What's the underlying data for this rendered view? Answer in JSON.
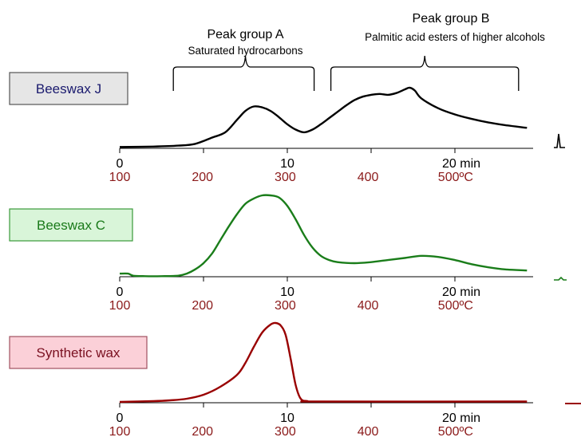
{
  "chart_data": {
    "type": "line",
    "x_unit": "min",
    "temp_unit": "500ºC",
    "time_ticks": [
      {
        "value": 0,
        "label": "0"
      },
      {
        "value": 10,
        "label": "10"
      },
      {
        "value": 20,
        "label": "20 min"
      }
    ],
    "temp_ticks": [
      {
        "value": 100,
        "label": "100"
      },
      {
        "value": 200,
        "label": "200"
      },
      {
        "value": 300,
        "label": "300"
      },
      {
        "value": 400,
        "label": "400"
      },
      {
        "value": 500,
        "label": "500ºC"
      }
    ],
    "annotations": [
      {
        "title": "Peak group A",
        "subtitle": "Saturated hydrocarbons",
        "x_range": [
          3.2,
          11.6
        ],
        "apex": 7.5
      },
      {
        "title": "Peak group B",
        "subtitle": "Palmitic acid esters of higher alcohols",
        "x_range": [
          12.6,
          23.8
        ],
        "apex": 18.2
      }
    ],
    "series": [
      {
        "name": "Beeswax J",
        "color": "#000000",
        "label_fill": "#e6e6e6",
        "label_border": "#555555",
        "label_text": "#1a1a6e",
        "points": [
          [
            0,
            1.5
          ],
          [
            2,
            2
          ],
          [
            3.5,
            3
          ],
          [
            4.5,
            5
          ],
          [
            5.5,
            12
          ],
          [
            6.3,
            18
          ],
          [
            7,
            32
          ],
          [
            7.5,
            42
          ],
          [
            8,
            47
          ],
          [
            8.5,
            46
          ],
          [
            9,
            42
          ],
          [
            9.5,
            35
          ],
          [
            10,
            27
          ],
          [
            10.5,
            21
          ],
          [
            11,
            18
          ],
          [
            11.5,
            21
          ],
          [
            12,
            27
          ],
          [
            12.5,
            34
          ],
          [
            13,
            41
          ],
          [
            13.5,
            48
          ],
          [
            14,
            54
          ],
          [
            14.5,
            58
          ],
          [
            15,
            60
          ],
          [
            15.5,
            61
          ],
          [
            16,
            60
          ],
          [
            16.5,
            62
          ],
          [
            17,
            66
          ],
          [
            17.3,
            68
          ],
          [
            17.6,
            65
          ],
          [
            18,
            56
          ],
          [
            19,
            45
          ],
          [
            20,
            38
          ],
          [
            21,
            33
          ],
          [
            22,
            29
          ],
          [
            23,
            26
          ],
          [
            24.3,
            23
          ]
        ],
        "marker_color": "#000000"
      },
      {
        "name": "Beeswax C",
        "color": "#1a7d1a",
        "label_fill": "#d9f5d9",
        "label_border": "#3a9a3a",
        "label_text": "#1a7a1a",
        "points": [
          [
            0,
            3
          ],
          [
            0.5,
            3
          ],
          [
            0.8,
            1
          ],
          [
            1.5,
            0.5
          ],
          [
            2.5,
            0.5
          ],
          [
            3.5,
            1
          ],
          [
            4,
            3
          ],
          [
            4.5,
            7
          ],
          [
            5,
            13
          ],
          [
            5.5,
            22
          ],
          [
            6,
            35
          ],
          [
            6.5,
            48
          ],
          [
            7,
            60
          ],
          [
            7.5,
            70
          ],
          [
            8,
            75
          ],
          [
            8.5,
            78
          ],
          [
            9,
            78
          ],
          [
            9.5,
            76
          ],
          [
            10,
            68
          ],
          [
            10.5,
            55
          ],
          [
            11,
            40
          ],
          [
            11.5,
            28
          ],
          [
            12,
            20
          ],
          [
            12.5,
            16
          ],
          [
            13,
            14
          ],
          [
            14,
            13
          ],
          [
            15,
            14
          ],
          [
            16,
            16
          ],
          [
            17,
            18
          ],
          [
            18,
            20
          ],
          [
            19,
            19
          ],
          [
            20,
            16
          ],
          [
            21,
            12
          ],
          [
            22,
            9
          ],
          [
            23,
            7
          ],
          [
            24.3,
            6
          ]
        ],
        "marker_color": "#1a7d1a"
      },
      {
        "name": "Synthetic wax",
        "color": "#990000",
        "label_fill": "#fbd0d8",
        "label_border": "#a05060",
        "label_text": "#7a1020",
        "points": [
          [
            0,
            1
          ],
          [
            2,
            2
          ],
          [
            3,
            3
          ],
          [
            4,
            5
          ],
          [
            5,
            10
          ],
          [
            6,
            20
          ],
          [
            7,
            35
          ],
          [
            7.5,
            50
          ],
          [
            8,
            70
          ],
          [
            8.5,
            88
          ],
          [
            9,
            98
          ],
          [
            9.3,
            100
          ],
          [
            9.6,
            97
          ],
          [
            9.9,
            85
          ],
          [
            10.2,
            55
          ],
          [
            10.5,
            22
          ],
          [
            10.8,
            5
          ],
          [
            11.2,
            2
          ],
          [
            12,
            1.5
          ],
          [
            24.3,
            1.5
          ]
        ],
        "marker_color": "#990000"
      }
    ],
    "x_range": [
      0,
      24.3
    ],
    "temp_axis_color": "#8b1a1a"
  }
}
